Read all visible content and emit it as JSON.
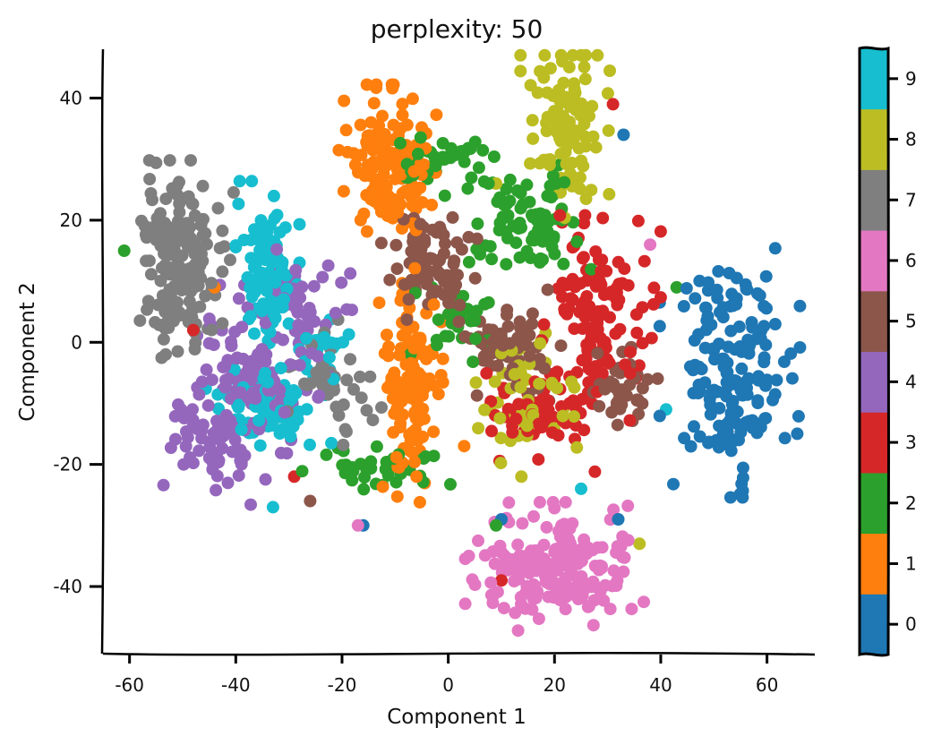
{
  "chart_data": {
    "type": "scatter",
    "title": "perplexity: 50",
    "xlabel": "Component 1",
    "ylabel": "Component 2",
    "xlim": [
      -65,
      69
    ],
    "ylim": [
      -51,
      48
    ],
    "xticks": [
      -60,
      -40,
      -20,
      0,
      20,
      40,
      60
    ],
    "yticks": [
      -40,
      -20,
      0,
      20,
      40
    ],
    "xtick_labels": [
      "-60",
      "-40",
      "-20",
      "0",
      "20",
      "40",
      "60"
    ],
    "ytick_labels": [
      "-40",
      "-20",
      "0",
      "20",
      "40"
    ],
    "grid": false,
    "colorbar": {
      "labels": [
        "0",
        "1",
        "2",
        "3",
        "4",
        "5",
        "6",
        "7",
        "8",
        "9"
      ],
      "colors": [
        "#1f77b4",
        "#ff7f0e",
        "#2ca02c",
        "#d62728",
        "#9467bd",
        "#8c564b",
        "#e377c2",
        "#7f7f7f",
        "#bcbd22",
        "#17becf"
      ]
    },
    "clusters": [
      {
        "class": 0,
        "center": [
          53,
          -5
        ],
        "spread": [
          5.5,
          8.5
        ],
        "count": 170
      },
      {
        "class": 1,
        "center": [
          -11,
          29
        ],
        "spread": [
          4,
          5.5
        ],
        "count": 150
      },
      {
        "class": 1,
        "center": [
          -7,
          -7
        ],
        "spread": [
          2.5,
          8
        ],
        "count": 130
      },
      {
        "class": 2,
        "center": [
          15,
          20
        ],
        "spread": [
          5,
          4
        ],
        "count": 80
      },
      {
        "class": 2,
        "center": [
          -3,
          30
        ],
        "spread": [
          5,
          2.5
        ],
        "count": 40
      },
      {
        "class": 2,
        "center": [
          -14,
          -21
        ],
        "spread": [
          6,
          2
        ],
        "count": 35
      },
      {
        "class": 2,
        "center": [
          2,
          4
        ],
        "spread": [
          4,
          3
        ],
        "count": 30
      },
      {
        "class": 3,
        "center": [
          28,
          4
        ],
        "spread": [
          5,
          7
        ],
        "count": 130
      },
      {
        "class": 3,
        "center": [
          16,
          -12
        ],
        "spread": [
          5,
          4
        ],
        "count": 60
      },
      {
        "class": 4,
        "center": [
          -37,
          -5
        ],
        "spread": [
          6,
          6
        ],
        "count": 120
      },
      {
        "class": 4,
        "center": [
          -44,
          -17
        ],
        "spread": [
          4,
          4
        ],
        "count": 60
      },
      {
        "class": 4,
        "center": [
          -27,
          8
        ],
        "spread": [
          4,
          3
        ],
        "count": 40
      },
      {
        "class": 5,
        "center": [
          -3,
          12
        ],
        "spread": [
          4,
          4
        ],
        "count": 80
      },
      {
        "class": 5,
        "center": [
          12,
          -1
        ],
        "spread": [
          4,
          4
        ],
        "count": 60
      },
      {
        "class": 5,
        "center": [
          33,
          -8
        ],
        "spread": [
          3,
          3
        ],
        "count": 40
      },
      {
        "class": 6,
        "center": [
          20,
          -37
        ],
        "spread": [
          7,
          4.5
        ],
        "count": 200
      },
      {
        "class": 7,
        "center": [
          -50,
          13
        ],
        "spread": [
          4,
          7
        ],
        "count": 180
      },
      {
        "class": 7,
        "center": [
          -22,
          -8
        ],
        "spread": [
          4,
          5
        ],
        "count": 40
      },
      {
        "class": 8,
        "center": [
          22,
          36
        ],
        "spread": [
          3.5,
          6.5
        ],
        "count": 110
      },
      {
        "class": 8,
        "center": [
          15,
          -10
        ],
        "spread": [
          5,
          5
        ],
        "count": 50
      },
      {
        "class": 9,
        "center": [
          -34,
          12
        ],
        "spread": [
          2.5,
          6
        ],
        "count": 100
      },
      {
        "class": 9,
        "center": [
          -34,
          -11
        ],
        "spread": [
          5,
          3.5
        ],
        "count": 70
      },
      {
        "class": 9,
        "center": [
          -23,
          -2
        ],
        "spread": [
          3,
          3
        ],
        "count": 25
      }
    ],
    "outliers": [
      {
        "class": 3,
        "x": 31,
        "y": 39
      },
      {
        "class": 0,
        "x": 33,
        "y": 34
      },
      {
        "class": 6,
        "x": 38,
        "y": 16
      },
      {
        "class": 2,
        "x": 43,
        "y": 9
      },
      {
        "class": 9,
        "x": 41,
        "y": -11
      },
      {
        "class": 8,
        "x": 36,
        "y": -33
      },
      {
        "class": 0,
        "x": 32,
        "y": -29
      },
      {
        "class": 3,
        "x": 10,
        "y": -39
      },
      {
        "class": 2,
        "x": 9,
        "y": -30
      },
      {
        "class": 0,
        "x": 10,
        "y": -29
      },
      {
        "class": 6,
        "x": -17,
        "y": -30
      },
      {
        "class": 0,
        "x": -16,
        "y": -30
      },
      {
        "class": 9,
        "x": -33,
        "y": -27
      },
      {
        "class": 1,
        "x": -44,
        "y": 9
      },
      {
        "class": 3,
        "x": -48,
        "y": 2
      },
      {
        "class": 2,
        "x": -61,
        "y": 15
      },
      {
        "class": 9,
        "x": 25,
        "y": -24
      },
      {
        "class": 3,
        "x": -29,
        "y": -22
      },
      {
        "class": 5,
        "x": -26,
        "y": -26
      },
      {
        "class": 1,
        "x": 3,
        "y": -17
      },
      {
        "class": 8,
        "x": 9,
        "y": 26
      }
    ]
  }
}
